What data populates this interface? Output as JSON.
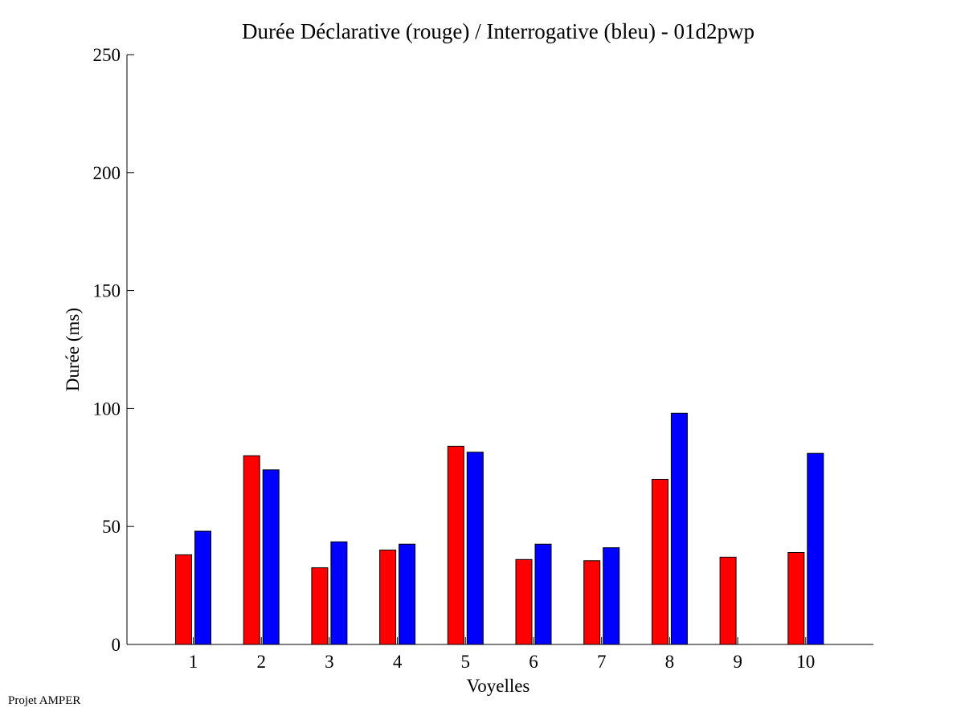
{
  "chart_data": {
    "type": "bar",
    "title": "Durée Déclarative (rouge) / Interrogative (bleu) - 01d2pwp",
    "xlabel": "Voyelles",
    "ylabel": "Durée (ms)",
    "ylim": [
      0,
      250
    ],
    "yticks": [
      0,
      50,
      100,
      150,
      200,
      250
    ],
    "categories": [
      "1",
      "2",
      "3",
      "4",
      "5",
      "6",
      "7",
      "8",
      "9",
      "10"
    ],
    "series": [
      {
        "color": "#ff0000",
        "values": [
          38,
          80,
          32.5,
          40,
          84,
          36,
          35.5,
          70,
          37,
          39
        ]
      },
      {
        "color": "#0000ff",
        "values": [
          48,
          74,
          43.5,
          42.5,
          81.5,
          42.5,
          41,
          98,
          0,
          81
        ]
      }
    ],
    "grid": false
  },
  "footer": "Projet AMPER"
}
